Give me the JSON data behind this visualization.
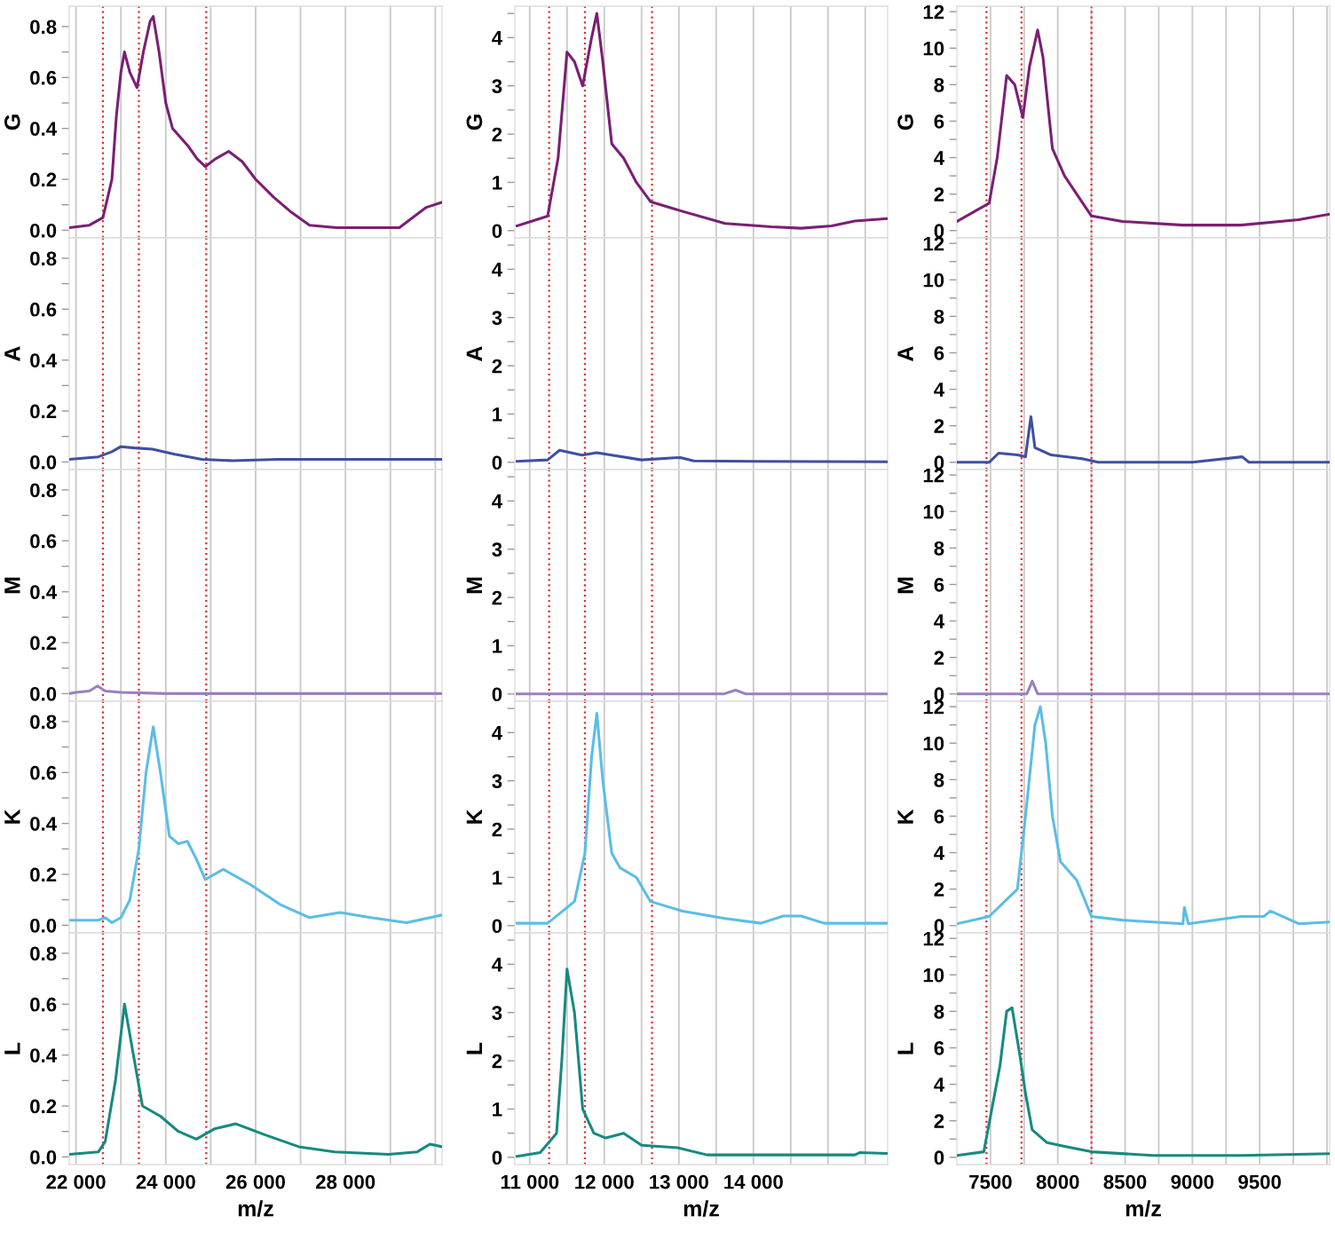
{
  "chart_data": [
    {
      "type": "line",
      "ylabel": "G",
      "tick_labels": "y",
      "grid": "x",
      "xlim": [
        21850,
        30150
      ],
      "ylim": [
        -0.03,
        0.88
      ],
      "xticks": [
        {
          "value": 22000,
          "label": null
        },
        {
          "value": 23000,
          "label": null
        },
        {
          "value": 24000,
          "label": null
        },
        {
          "value": 25000,
          "label": null
        },
        {
          "value": 26000,
          "label": null
        },
        {
          "value": 27000,
          "label": null
        },
        {
          "value": 28000,
          "label": null
        },
        {
          "value": 29000,
          "label": null
        },
        {
          "value": 30000,
          "label": null
        }
      ],
      "yticks": [
        {
          "value": 0,
          "label": "0.0"
        },
        {
          "value": 0.1,
          "label": null
        },
        {
          "value": 0.2,
          "label": "0.2"
        },
        {
          "value": 0.3,
          "label": null
        },
        {
          "value": 0.4,
          "label": "0.4"
        },
        {
          "value": 0.5,
          "label": null
        },
        {
          "value": 0.6,
          "label": "0.6"
        },
        {
          "value": 0.7,
          "label": null
        },
        {
          "value": 0.8,
          "label": "0.8"
        }
      ],
      "ref_lines": [
        {
          "axis": "x",
          "value": 22600,
          "color": "#e03030",
          "line_style": "dotted"
        },
        {
          "axis": "x",
          "value": 23400,
          "color": "#e03030",
          "line_style": "dotted"
        },
        {
          "axis": "x",
          "value": 24900,
          "color": "#e03030",
          "line_style": "dotted"
        }
      ],
      "series": [
        {
          "color": "#7b1f73",
          "x": [
            21850,
            22300,
            22600,
            22800,
            22900,
            23000,
            23080,
            23200,
            23360,
            23500,
            23650,
            23720,
            23850,
            24000,
            24150,
            24300,
            24500,
            24700,
            24880,
            25100,
            25400,
            25700,
            26000,
            26400,
            26800,
            27200,
            27800,
            28500,
            29200,
            29500,
            29800,
            30150
          ],
          "values": [
            0.01,
            0.02,
            0.05,
            0.2,
            0.45,
            0.62,
            0.7,
            0.62,
            0.56,
            0.7,
            0.82,
            0.84,
            0.7,
            0.5,
            0.4,
            0.37,
            0.33,
            0.28,
            0.25,
            0.28,
            0.31,
            0.27,
            0.2,
            0.13,
            0.07,
            0.02,
            0.01,
            0.01,
            0.01,
            0.05,
            0.09,
            0.11
          ]
        }
      ]
    },
    {
      "type": "line",
      "ylabel": "G",
      "tick_labels": "y",
      "grid": "x",
      "xlim": [
        10800,
        15800
      ],
      "ylim": [
        -0.15,
        4.65
      ],
      "xticks": [
        {
          "value": 11000,
          "label": null
        },
        {
          "value": 11500,
          "label": null
        },
        {
          "value": 12000,
          "label": null
        },
        {
          "value": 12500,
          "label": null
        },
        {
          "value": 13000,
          "label": null
        },
        {
          "value": 13500,
          "label": null
        },
        {
          "value": 14000,
          "label": null
        },
        {
          "value": 14500,
          "label": null
        },
        {
          "value": 15000,
          "label": null
        },
        {
          "value": 15500,
          "label": null
        }
      ],
      "yticks": [
        0,
        {
          "value": 0.5,
          "label": null
        },
        1,
        {
          "value": 1.5,
          "label": null
        },
        2,
        {
          "value": 2.5,
          "label": null
        },
        3,
        {
          "value": 3.5,
          "label": null
        },
        4,
        {
          "value": 4.5,
          "label": null
        }
      ],
      "ref_lines": [
        {
          "axis": "x",
          "value": 11260,
          "color": "#e03030",
          "line_style": "dotted"
        },
        {
          "axis": "x",
          "value": 11740,
          "color": "#e03030",
          "line_style": "dotted"
        },
        {
          "axis": "x",
          "value": 12640,
          "color": "#e03030",
          "line_style": "dotted"
        }
      ],
      "series": [
        {
          "color": "#7b1f73",
          "x": [
            10830,
            11240,
            11380,
            11500,
            11600,
            11710,
            11830,
            11900,
            11980,
            12100,
            12260,
            12430,
            12620,
            13050,
            13620,
            14240,
            14640,
            15050,
            15360,
            15790
          ],
          "values": [
            0.1,
            0.3,
            1.5,
            3.7,
            3.5,
            3.0,
            4.0,
            4.5,
            3.5,
            1.8,
            1.5,
            1.0,
            0.6,
            0.4,
            0.15,
            0.08,
            0.05,
            0.1,
            0.2,
            0.25
          ]
        }
      ]
    },
    {
      "type": "line",
      "ylabel": "G",
      "tick_labels": "y",
      "grid": "x",
      "xlim": [
        7250,
        10020
      ],
      "ylim": [
        -0.4,
        12.3
      ],
      "xticks": [
        {
          "value": 7500,
          "label": null
        },
        {
          "value": 7750,
          "label": null
        },
        {
          "value": 8000,
          "label": null
        },
        {
          "value": 8250,
          "label": null
        },
        {
          "value": 8500,
          "label": null
        },
        {
          "value": 8750,
          "label": null
        },
        {
          "value": 9000,
          "label": null
        },
        {
          "value": 9250,
          "label": null
        },
        {
          "value": 9500,
          "label": null
        },
        {
          "value": 9750,
          "label": null
        },
        {
          "value": 10000,
          "label": null
        }
      ],
      "yticks": [
        0,
        {
          "value": 1,
          "label": null
        },
        2,
        {
          "value": 3,
          "label": null
        },
        4,
        {
          "value": 5,
          "label": null
        },
        6,
        {
          "value": 7,
          "label": null
        },
        8,
        {
          "value": 9,
          "label": null
        },
        10,
        {
          "value": 11,
          "label": null
        },
        12
      ],
      "ref_lines": [
        {
          "axis": "x",
          "value": 7470,
          "color": "#e03030",
          "line_style": "dotted"
        },
        {
          "axis": "x",
          "value": 7730,
          "color": "#e03030",
          "line_style": "dotted"
        },
        {
          "axis": "x",
          "value": 8250,
          "color": "#e03030",
          "line_style": "dotted"
        }
      ],
      "series": [
        {
          "color": "#7b1f73",
          "x": [
            7250,
            7490,
            7550,
            7620,
            7680,
            7740,
            7790,
            7850,
            7890,
            7960,
            8050,
            8140,
            8250,
            8480,
            8930,
            9360,
            9790,
            10020
          ],
          "values": [
            0.5,
            1.5,
            4,
            8.5,
            8.0,
            6.2,
            9.0,
            11.0,
            9.5,
            4.5,
            3.0,
            2.0,
            0.8,
            0.5,
            0.3,
            0.3,
            0.6,
            0.9
          ]
        }
      ]
    },
    {
      "type": "line",
      "ylabel": "A",
      "tick_labels": "y",
      "grid": "x",
      "xlim": [
        21850,
        30150
      ],
      "ylim": [
        -0.03,
        0.88
      ],
      "xticks": [
        {
          "value": 22000,
          "label": null
        },
        {
          "value": 23000,
          "label": null
        },
        {
          "value": 24000,
          "label": null
        },
        {
          "value": 25000,
          "label": null
        },
        {
          "value": 26000,
          "label": null
        },
        {
          "value": 27000,
          "label": null
        },
        {
          "value": 28000,
          "label": null
        },
        {
          "value": 29000,
          "label": null
        },
        {
          "value": 30000,
          "label": null
        }
      ],
      "yticks": [
        {
          "value": 0,
          "label": "0.0"
        },
        {
          "value": 0.1,
          "label": null
        },
        {
          "value": 0.2,
          "label": "0.2"
        },
        {
          "value": 0.3,
          "label": null
        },
        {
          "value": 0.4,
          "label": "0.4"
        },
        {
          "value": 0.5,
          "label": null
        },
        {
          "value": 0.6,
          "label": "0.6"
        },
        {
          "value": 0.7,
          "label": null
        },
        {
          "value": 0.8,
          "label": "0.8"
        }
      ],
      "ref_lines": [
        {
          "axis": "x",
          "value": 22600,
          "color": "#e03030",
          "line_style": "dotted"
        },
        {
          "axis": "x",
          "value": 23400,
          "color": "#e03030",
          "line_style": "dotted"
        },
        {
          "axis": "x",
          "value": 24900,
          "color": "#e03030",
          "line_style": "dotted"
        }
      ],
      "series": [
        {
          "color": "#3f4fa0",
          "x": [
            21850,
            22500,
            22800,
            23000,
            23300,
            23700,
            24200,
            24800,
            25500,
            26500,
            28000,
            30150
          ],
          "values": [
            0.01,
            0.02,
            0.04,
            0.06,
            0.055,
            0.05,
            0.03,
            0.01,
            0.005,
            0.01,
            0.01,
            0.01
          ]
        }
      ]
    },
    {
      "type": "line",
      "ylabel": "A",
      "tick_labels": "y",
      "grid": "x",
      "xlim": [
        10800,
        15800
      ],
      "ylim": [
        -0.15,
        4.65
      ],
      "xticks": [
        {
          "value": 11000,
          "label": null
        },
        {
          "value": 11500,
          "label": null
        },
        {
          "value": 12000,
          "label": null
        },
        {
          "value": 12500,
          "label": null
        },
        {
          "value": 13000,
          "label": null
        },
        {
          "value": 13500,
          "label": null
        },
        {
          "value": 14000,
          "label": null
        },
        {
          "value": 14500,
          "label": null
        },
        {
          "value": 15000,
          "label": null
        },
        {
          "value": 15500,
          "label": null
        }
      ],
      "yticks": [
        0,
        {
          "value": 0.5,
          "label": null
        },
        1,
        {
          "value": 1.5,
          "label": null
        },
        2,
        {
          "value": 2.5,
          "label": null
        },
        3,
        {
          "value": 3.5,
          "label": null
        },
        4,
        {
          "value": 4.5,
          "label": null
        }
      ],
      "ref_lines": [
        {
          "axis": "x",
          "value": 11260,
          "color": "#e03030",
          "line_style": "dotted"
        },
        {
          "axis": "x",
          "value": 11740,
          "color": "#e03030",
          "line_style": "dotted"
        },
        {
          "axis": "x",
          "value": 12640,
          "color": "#e03030",
          "line_style": "dotted"
        }
      ],
      "series": [
        {
          "color": "#3f4fa0",
          "x": [
            10830,
            11240,
            11400,
            11550,
            11700,
            11900,
            12100,
            12500,
            13020,
            13200,
            14000,
            15790
          ],
          "values": [
            0.02,
            0.05,
            0.25,
            0.2,
            0.15,
            0.2,
            0.15,
            0.05,
            0.1,
            0.03,
            0.02,
            0.01
          ]
        }
      ]
    },
    {
      "type": "line",
      "ylabel": "A",
      "tick_labels": "y",
      "grid": "x",
      "xlim": [
        7250,
        10020
      ],
      "ylim": [
        -0.4,
        12.3
      ],
      "xticks": [
        {
          "value": 7500,
          "label": null
        },
        {
          "value": 7750,
          "label": null
        },
        {
          "value": 8000,
          "label": null
        },
        {
          "value": 8250,
          "label": null
        },
        {
          "value": 8500,
          "label": null
        },
        {
          "value": 8750,
          "label": null
        },
        {
          "value": 9000,
          "label": null
        },
        {
          "value": 9250,
          "label": null
        },
        {
          "value": 9500,
          "label": null
        },
        {
          "value": 9750,
          "label": null
        },
        {
          "value": 10000,
          "label": null
        }
      ],
      "yticks": [
        0,
        {
          "value": 1,
          "label": null
        },
        2,
        {
          "value": 3,
          "label": null
        },
        4,
        {
          "value": 5,
          "label": null
        },
        6,
        {
          "value": 7,
          "label": null
        },
        8,
        {
          "value": 9,
          "label": null
        },
        10,
        {
          "value": 11,
          "label": null
        },
        12
      ],
      "ref_lines": [
        {
          "axis": "x",
          "value": 7470,
          "color": "#e03030",
          "line_style": "dotted"
        },
        {
          "axis": "x",
          "value": 7730,
          "color": "#e03030",
          "line_style": "dotted"
        },
        {
          "axis": "x",
          "value": 8250,
          "color": "#e03030",
          "line_style": "dotted"
        }
      ],
      "series": [
        {
          "color": "#3f4fa0",
          "x": [
            7250,
            7490,
            7560,
            7700,
            7760,
            7800,
            7830,
            7950,
            8180,
            8300,
            9000,
            9370,
            9420,
            10020
          ],
          "values": [
            0,
            0,
            0.5,
            0.4,
            0.3,
            2.5,
            0.8,
            0.4,
            0.2,
            0,
            0,
            0.3,
            0,
            0
          ]
        }
      ]
    },
    {
      "type": "line",
      "ylabel": "M",
      "tick_labels": "y",
      "grid": "x",
      "xlim": [
        21850,
        30150
      ],
      "ylim": [
        -0.03,
        0.88
      ],
      "xticks": [
        {
          "value": 22000,
          "label": null
        },
        {
          "value": 23000,
          "label": null
        },
        {
          "value": 24000,
          "label": null
        },
        {
          "value": 25000,
          "label": null
        },
        {
          "value": 26000,
          "label": null
        },
        {
          "value": 27000,
          "label": null
        },
        {
          "value": 28000,
          "label": null
        },
        {
          "value": 29000,
          "label": null
        },
        {
          "value": 30000,
          "label": null
        }
      ],
      "yticks": [
        {
          "value": 0,
          "label": "0.0"
        },
        {
          "value": 0.1,
          "label": null
        },
        {
          "value": 0.2,
          "label": "0.2"
        },
        {
          "value": 0.3,
          "label": null
        },
        {
          "value": 0.4,
          "label": "0.4"
        },
        {
          "value": 0.5,
          "label": null
        },
        {
          "value": 0.6,
          "label": "0.6"
        },
        {
          "value": 0.7,
          "label": null
        },
        {
          "value": 0.8,
          "label": "0.8"
        }
      ],
      "ref_lines": [
        {
          "axis": "x",
          "value": 22600,
          "color": "#e03030",
          "line_style": "dotted"
        },
        {
          "axis": "x",
          "value": 23400,
          "color": "#e03030",
          "line_style": "dotted"
        },
        {
          "axis": "x",
          "value": 24900,
          "color": "#e03030",
          "line_style": "dotted"
        }
      ],
      "series": [
        {
          "color": "#9b7fc0",
          "x": [
            21850,
            22000,
            22300,
            22480,
            22650,
            23000,
            24000,
            30150
          ],
          "values": [
            0,
            0.005,
            0.01,
            0.03,
            0.01,
            0.005,
            0,
            0
          ]
        }
      ]
    },
    {
      "type": "line",
      "ylabel": "M",
      "tick_labels": "y",
      "grid": "x",
      "xlim": [
        10800,
        15800
      ],
      "ylim": [
        -0.15,
        4.65
      ],
      "xticks": [
        {
          "value": 11000,
          "label": null
        },
        {
          "value": 11500,
          "label": null
        },
        {
          "value": 12000,
          "label": null
        },
        {
          "value": 12500,
          "label": null
        },
        {
          "value": 13000,
          "label": null
        },
        {
          "value": 13500,
          "label": null
        },
        {
          "value": 14000,
          "label": null
        },
        {
          "value": 14500,
          "label": null
        },
        {
          "value": 15000,
          "label": null
        },
        {
          "value": 15500,
          "label": null
        }
      ],
      "yticks": [
        0,
        {
          "value": 0.5,
          "label": null
        },
        1,
        {
          "value": 1.5,
          "label": null
        },
        2,
        {
          "value": 2.5,
          "label": null
        },
        3,
        {
          "value": 3.5,
          "label": null
        },
        4,
        {
          "value": 4.5,
          "label": null
        }
      ],
      "ref_lines": [
        {
          "axis": "x",
          "value": 11260,
          "color": "#e03030",
          "line_style": "dotted"
        },
        {
          "axis": "x",
          "value": 11740,
          "color": "#e03030",
          "line_style": "dotted"
        },
        {
          "axis": "x",
          "value": 12640,
          "color": "#e03030",
          "line_style": "dotted"
        }
      ],
      "series": [
        {
          "color": "#9b7fc0",
          "x": [
            10830,
            13600,
            13760,
            13900,
            15790
          ],
          "values": [
            0,
            0,
            0.08,
            0,
            0
          ]
        }
      ]
    },
    {
      "type": "line",
      "ylabel": "M",
      "tick_labels": "y",
      "grid": "x",
      "xlim": [
        7250,
        10020
      ],
      "ylim": [
        -0.4,
        12.3
      ],
      "xticks": [
        {
          "value": 7500,
          "label": null
        },
        {
          "value": 7750,
          "label": null
        },
        {
          "value": 8000,
          "label": null
        },
        {
          "value": 8250,
          "label": null
        },
        {
          "value": 8500,
          "label": null
        },
        {
          "value": 8750,
          "label": null
        },
        {
          "value": 9000,
          "label": null
        },
        {
          "value": 9250,
          "label": null
        },
        {
          "value": 9500,
          "label": null
        },
        {
          "value": 9750,
          "label": null
        },
        {
          "value": 10000,
          "label": null
        }
      ],
      "yticks": [
        0,
        {
          "value": 1,
          "label": null
        },
        2,
        {
          "value": 3,
          "label": null
        },
        4,
        {
          "value": 5,
          "label": null
        },
        6,
        {
          "value": 7,
          "label": null
        },
        8,
        {
          "value": 9,
          "label": null
        },
        10,
        {
          "value": 11,
          "label": null
        },
        12
      ],
      "ref_lines": [
        {
          "axis": "x",
          "value": 7470,
          "color": "#e03030",
          "line_style": "dotted"
        },
        {
          "axis": "x",
          "value": 7730,
          "color": "#e03030",
          "line_style": "dotted"
        },
        {
          "axis": "x",
          "value": 8250,
          "color": "#e03030",
          "line_style": "dotted"
        }
      ],
      "series": [
        {
          "color": "#9b7fc0",
          "x": [
            7250,
            7770,
            7810,
            7850,
            10020
          ],
          "values": [
            0,
            0,
            0.7,
            0,
            0
          ]
        }
      ]
    },
    {
      "type": "line",
      "ylabel": "K",
      "tick_labels": "y",
      "grid": "x",
      "xlim": [
        21850,
        30150
      ],
      "ylim": [
        -0.03,
        0.88
      ],
      "xticks": [
        {
          "value": 22000,
          "label": null
        },
        {
          "value": 23000,
          "label": null
        },
        {
          "value": 24000,
          "label": null
        },
        {
          "value": 25000,
          "label": null
        },
        {
          "value": 26000,
          "label": null
        },
        {
          "value": 27000,
          "label": null
        },
        {
          "value": 28000,
          "label": null
        },
        {
          "value": 29000,
          "label": null
        },
        {
          "value": 30000,
          "label": null
        }
      ],
      "yticks": [
        {
          "value": 0,
          "label": "0.0"
        },
        {
          "value": 0.1,
          "label": null
        },
        {
          "value": 0.2,
          "label": "0.2"
        },
        {
          "value": 0.3,
          "label": null
        },
        {
          "value": 0.4,
          "label": "0.4"
        },
        {
          "value": 0.5,
          "label": null
        },
        {
          "value": 0.6,
          "label": "0.6"
        },
        {
          "value": 0.7,
          "label": null
        },
        {
          "value": 0.8,
          "label": "0.8"
        }
      ],
      "ref_lines": [
        {
          "axis": "x",
          "value": 22600,
          "color": "#e03030",
          "line_style": "dotted"
        },
        {
          "axis": "x",
          "value": 23400,
          "color": "#e03030",
          "line_style": "dotted"
        },
        {
          "axis": "x",
          "value": 24900,
          "color": "#e03030",
          "line_style": "dotted"
        }
      ],
      "series": [
        {
          "color": "#5bbde6",
          "x": [
            21850,
            22500,
            22650,
            22800,
            23000,
            23200,
            23400,
            23560,
            23720,
            23880,
            24080,
            24280,
            24480,
            24680,
            24880,
            25280,
            25880,
            26560,
            27200,
            27880,
            28560,
            29360,
            30150
          ],
          "values": [
            0.02,
            0.02,
            0.03,
            0.01,
            0.03,
            0.1,
            0.3,
            0.6,
            0.78,
            0.6,
            0.35,
            0.32,
            0.33,
            0.26,
            0.18,
            0.22,
            0.16,
            0.08,
            0.03,
            0.05,
            0.03,
            0.01,
            0.04
          ]
        }
      ]
    },
    {
      "type": "line",
      "ylabel": "K",
      "tick_labels": "y",
      "grid": "x",
      "xlim": [
        10800,
        15800
      ],
      "ylim": [
        -0.15,
        4.65
      ],
      "xticks": [
        {
          "value": 11000,
          "label": null
        },
        {
          "value": 11500,
          "label": null
        },
        {
          "value": 12000,
          "label": null
        },
        {
          "value": 12500,
          "label": null
        },
        {
          "value": 13000,
          "label": null
        },
        {
          "value": 13500,
          "label": null
        },
        {
          "value": 14000,
          "label": null
        },
        {
          "value": 14500,
          "label": null
        },
        {
          "value": 15000,
          "label": null
        },
        {
          "value": 15500,
          "label": null
        }
      ],
      "yticks": [
        0,
        {
          "value": 0.5,
          "label": null
        },
        1,
        {
          "value": 1.5,
          "label": null
        },
        2,
        {
          "value": 2.5,
          "label": null
        },
        3,
        {
          "value": 3.5,
          "label": null
        },
        4,
        {
          "value": 4.5,
          "label": null
        }
      ],
      "ref_lines": [
        {
          "axis": "x",
          "value": 11260,
          "color": "#e03030",
          "line_style": "dotted"
        },
        {
          "axis": "x",
          "value": 11740,
          "color": "#e03030",
          "line_style": "dotted"
        },
        {
          "axis": "x",
          "value": 12640,
          "color": "#e03030",
          "line_style": "dotted"
        }
      ],
      "series": [
        {
          "color": "#5bbde6",
          "x": [
            10830,
            11240,
            11600,
            11740,
            11830,
            11900,
            11980,
            12100,
            12210,
            12430,
            12620,
            13050,
            13620,
            14100,
            14400,
            14640,
            14950,
            15790
          ],
          "values": [
            0.05,
            0.05,
            0.5,
            1.5,
            3.5,
            4.4,
            3.0,
            1.5,
            1.2,
            1.0,
            0.5,
            0.3,
            0.15,
            0.05,
            0.2,
            0.2,
            0.05,
            0.05
          ]
        }
      ]
    },
    {
      "type": "line",
      "ylabel": "K",
      "tick_labels": "y",
      "grid": "x",
      "xlim": [
        7250,
        10020
      ],
      "ylim": [
        -0.4,
        12.3
      ],
      "xticks": [
        {
          "value": 7500,
          "label": null
        },
        {
          "value": 7750,
          "label": null
        },
        {
          "value": 8000,
          "label": null
        },
        {
          "value": 8250,
          "label": null
        },
        {
          "value": 8500,
          "label": null
        },
        {
          "value": 8750,
          "label": null
        },
        {
          "value": 9000,
          "label": null
        },
        {
          "value": 9250,
          "label": null
        },
        {
          "value": 9500,
          "label": null
        },
        {
          "value": 9750,
          "label": null
        },
        {
          "value": 10000,
          "label": null
        }
      ],
      "yticks": [
        0,
        {
          "value": 1,
          "label": null
        },
        2,
        {
          "value": 3,
          "label": null
        },
        4,
        {
          "value": 5,
          "label": null
        },
        6,
        {
          "value": 7,
          "label": null
        },
        8,
        {
          "value": 9,
          "label": null
        },
        10,
        {
          "value": 11,
          "label": null
        },
        12
      ],
      "ref_lines": [
        {
          "axis": "x",
          "value": 7470,
          "color": "#e03030",
          "line_style": "dotted"
        },
        {
          "axis": "x",
          "value": 7730,
          "color": "#e03030",
          "line_style": "dotted"
        },
        {
          "axis": "x",
          "value": 8250,
          "color": "#e03030",
          "line_style": "dotted"
        }
      ],
      "series": [
        {
          "color": "#5bbde6",
          "x": [
            7250,
            7490,
            7700,
            7760,
            7830,
            7870,
            7910,
            7960,
            8020,
            8140,
            8250,
            8480,
            8930,
            8940,
            8970,
            9360,
            9530,
            9580,
            9790,
            10020
          ],
          "values": [
            0.1,
            0.5,
            2.0,
            6,
            11.0,
            12.0,
            10.0,
            6.0,
            3.5,
            2.5,
            0.5,
            0.3,
            0.1,
            1.0,
            0.1,
            0.5,
            0.5,
            0.8,
            0.1,
            0.2
          ]
        }
      ]
    },
    {
      "type": "line",
      "ylabel": "L",
      "xlabel": "m/z",
      "grid": "x",
      "xlim": [
        21850,
        30150
      ],
      "ylim": [
        -0.03,
        0.88
      ],
      "xticks": [
        {
          "value": 22000,
          "label": "22 000"
        },
        {
          "value": 23000,
          "label": null
        },
        {
          "value": 24000,
          "label": "24 000"
        },
        {
          "value": 25000,
          "label": null
        },
        {
          "value": 26000,
          "label": "26 000"
        },
        {
          "value": 27000,
          "label": null
        },
        {
          "value": 28000,
          "label": "28 000"
        },
        {
          "value": 29000,
          "label": null
        },
        {
          "value": 30000,
          "label": null
        }
      ],
      "yticks": [
        {
          "value": 0,
          "label": "0.0"
        },
        {
          "value": 0.1,
          "label": null
        },
        {
          "value": 0.2,
          "label": "0.2"
        },
        {
          "value": 0.3,
          "label": null
        },
        {
          "value": 0.4,
          "label": "0.4"
        },
        {
          "value": 0.5,
          "label": null
        },
        {
          "value": 0.6,
          "label": "0.6"
        },
        {
          "value": 0.7,
          "label": null
        },
        {
          "value": 0.8,
          "label": "0.8"
        }
      ],
      "ref_lines": [
        {
          "axis": "x",
          "value": 22600,
          "color": "#e03030",
          "line_style": "dotted"
        },
        {
          "axis": "x",
          "value": 23400,
          "color": "#e03030",
          "line_style": "dotted"
        },
        {
          "axis": "x",
          "value": 24900,
          "color": "#e03030",
          "line_style": "dotted"
        }
      ],
      "series": [
        {
          "color": "#178a7f",
          "x": [
            21850,
            22500,
            22650,
            22880,
            23080,
            23280,
            23480,
            23880,
            24280,
            24680,
            25080,
            25560,
            26160,
            26960,
            27760,
            28960,
            29600,
            29880,
            30150
          ],
          "values": [
            0.01,
            0.02,
            0.06,
            0.3,
            0.6,
            0.4,
            0.2,
            0.16,
            0.1,
            0.07,
            0.11,
            0.13,
            0.09,
            0.04,
            0.02,
            0.01,
            0.02,
            0.05,
            0.04
          ]
        }
      ]
    },
    {
      "type": "line",
      "ylabel": "L",
      "xlabel": "m/z",
      "grid": "x",
      "xlim": [
        10800,
        15800
      ],
      "ylim": [
        -0.15,
        4.65
      ],
      "xticks": [
        {
          "value": 11000,
          "label": "11 000"
        },
        {
          "value": 11500,
          "label": null
        },
        {
          "value": 12000,
          "label": "12 000"
        },
        {
          "value": 12500,
          "label": null
        },
        {
          "value": 13000,
          "label": "13 000"
        },
        {
          "value": 13500,
          "label": null
        },
        {
          "value": 14000,
          "label": "14 000"
        },
        {
          "value": 14500,
          "label": null
        },
        {
          "value": 15000,
          "label": null
        },
        {
          "value": 15500,
          "label": null
        }
      ],
      "yticks": [
        0,
        {
          "value": 0.5,
          "label": null
        },
        1,
        {
          "value": 1.5,
          "label": null
        },
        2,
        {
          "value": 2.5,
          "label": null
        },
        3,
        {
          "value": 3.5,
          "label": null
        },
        4,
        {
          "value": 4.5,
          "label": null
        }
      ],
      "ref_lines": [
        {
          "axis": "x",
          "value": 11260,
          "color": "#e03030",
          "line_style": "dotted"
        },
        {
          "axis": "x",
          "value": 11740,
          "color": "#e03030",
          "line_style": "dotted"
        },
        {
          "axis": "x",
          "value": 12640,
          "color": "#e03030",
          "line_style": "dotted"
        }
      ],
      "series": [
        {
          "color": "#178a7f",
          "x": [
            10830,
            11140,
            11360,
            11430,
            11500,
            11600,
            11710,
            11860,
            12020,
            12260,
            12500,
            12980,
            13380,
            14240,
            15360,
            15430,
            15790
          ],
          "values": [
            0.02,
            0.1,
            0.5,
            2.0,
            3.9,
            3.0,
            1.0,
            0.5,
            0.4,
            0.5,
            0.25,
            0.2,
            0.05,
            0.05,
            0.05,
            0.1,
            0.08
          ]
        }
      ]
    },
    {
      "type": "line",
      "ylabel": "L",
      "xlabel": "m/z",
      "grid": "x",
      "xlim": [
        7250,
        10020
      ],
      "ylim": [
        -0.4,
        12.3
      ],
      "xticks": [
        {
          "value": 7500,
          "label": "7500"
        },
        {
          "value": 7750,
          "label": null
        },
        {
          "value": 8000,
          "label": "8000"
        },
        {
          "value": 8250,
          "label": null
        },
        {
          "value": 8500,
          "label": "8500"
        },
        {
          "value": 8750,
          "label": null
        },
        {
          "value": 9000,
          "label": "9000"
        },
        {
          "value": 9250,
          "label": null
        },
        {
          "value": 9500,
          "label": "9500"
        },
        {
          "value": 9750,
          "label": null
        },
        {
          "value": 10000,
          "label": null
        }
      ],
      "yticks": [
        0,
        {
          "value": 1,
          "label": null
        },
        2,
        {
          "value": 3,
          "label": null
        },
        4,
        {
          "value": 5,
          "label": null
        },
        6,
        {
          "value": 7,
          "label": null
        },
        8,
        {
          "value": 9,
          "label": null
        },
        10,
        {
          "value": 11,
          "label": null
        },
        12
      ],
      "ref_lines": [
        {
          "axis": "x",
          "value": 7470,
          "color": "#e03030",
          "line_style": "dotted"
        },
        {
          "axis": "x",
          "value": 7730,
          "color": "#e03030",
          "line_style": "dotted"
        },
        {
          "axis": "x",
          "value": 8250,
          "color": "#e03030",
          "line_style": "dotted"
        }
      ],
      "series": [
        {
          "color": "#178a7f",
          "x": [
            7250,
            7450,
            7570,
            7620,
            7660,
            7720,
            7760,
            7810,
            7920,
            8050,
            8250,
            8710,
            9360,
            10020
          ],
          "values": [
            0.1,
            0.3,
            5,
            8.0,
            8.2,
            5.5,
            3.5,
            1.5,
            0.8,
            0.6,
            0.3,
            0.1,
            0.1,
            0.2
          ]
        }
      ]
    }
  ]
}
